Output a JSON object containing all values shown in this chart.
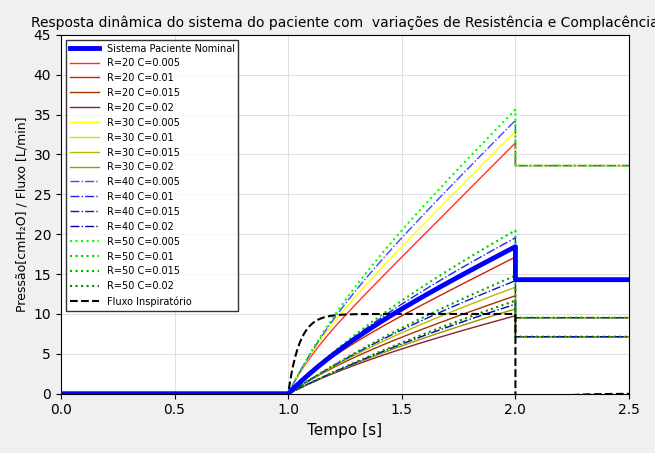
{
  "title": "Resposta dinâmica do sistema do paciente com  variações de Resistência e Complacência",
  "xlabel": "Tempo [s]",
  "ylabel": "Pressão[cmH₂O] / Fluxo [L/min]",
  "xlim": [
    0,
    2.5
  ],
  "ylim": [
    0,
    45
  ],
  "xticks": [
    0,
    0.5,
    1.0,
    1.5,
    2.0,
    2.5
  ],
  "yticks": [
    0,
    5,
    10,
    15,
    20,
    25,
    30,
    35,
    40,
    45
  ],
  "t_start": 1.0,
  "t_end": 2.0,
  "dt": 0.001,
  "curves": [
    {
      "R": 20,
      "C": 0.005,
      "color": "#FF0000",
      "ls": "solid",
      "lw": 1.0
    },
    {
      "R": 20,
      "C": 0.01,
      "color": "#CC2200",
      "ls": "solid",
      "lw": 1.0
    },
    {
      "R": 20,
      "C": 0.015,
      "color": "#AA3300",
      "ls": "solid",
      "lw": 1.0
    },
    {
      "R": 20,
      "C": 0.02,
      "color": "#882222",
      "ls": "solid",
      "lw": 1.0
    },
    {
      "R": 30,
      "C": 0.005,
      "color": "#FFFF00",
      "ls": "solid",
      "lw": 1.0
    },
    {
      "R": 30,
      "C": 0.01,
      "color": "#DDDD00",
      "ls": "solid",
      "lw": 1.0
    },
    {
      "R": 30,
      "C": 0.015,
      "color": "#BBBB00",
      "ls": "solid",
      "lw": 1.0
    },
    {
      "R": 30,
      "C": 0.02,
      "color": "#999900",
      "ls": "solid",
      "lw": 1.0
    },
    {
      "R": 40,
      "C": 0.005,
      "color": "#0000FF",
      "ls": "dashdot",
      "lw": 1.0
    },
    {
      "R": 40,
      "C": 0.01,
      "color": "#0000CC",
      "ls": "dashdot",
      "lw": 1.0
    },
    {
      "R": 40,
      "C": 0.015,
      "color": "#0000AA",
      "ls": "dashdot",
      "lw": 1.0
    },
    {
      "R": 40,
      "C": 0.02,
      "color": "#000088",
      "ls": "dashdot",
      "lw": 1.0
    },
    {
      "R": 50,
      "C": 0.005,
      "color": "#00FF00",
      "ls": "dotted",
      "lw": 1.5
    },
    {
      "R": 50,
      "C": 0.01,
      "color": "#00CC00",
      "ls": "dotted",
      "lw": 1.5
    },
    {
      "R": 50,
      "C": 0.015,
      "color": "#00AA00",
      "ls": "dotted",
      "lw": 1.5
    },
    {
      "R": 50,
      "C": 0.02,
      "color": "#008800",
      "ls": "dotted",
      "lw": 1.5
    }
  ],
  "nominal": {
    "R": 30,
    "C": 0.01,
    "color": "#0000FF",
    "lw": 3.5
  },
  "flow_color": "#000000",
  "flow_peak": 10.0,
  "Pset": 20.0,
  "background_color": "#f0f0f0"
}
